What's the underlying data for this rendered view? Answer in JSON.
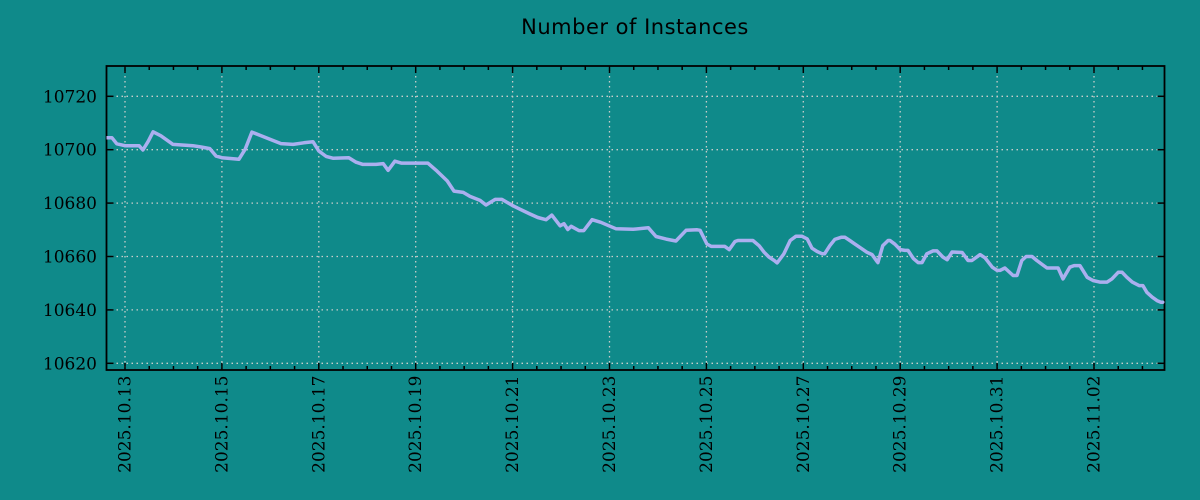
{
  "window": {
    "title": "Number of Instances"
  },
  "colors": {
    "background": "#0f8a8a",
    "series_line": "#abafef",
    "grid": "#c9cdcb",
    "axis_border": "#000000",
    "text": "#000000"
  },
  "chart_data": {
    "type": "line",
    "title": "Number of Instances",
    "xlabel": "",
    "ylabel": "",
    "legend": "none",
    "grid": true,
    "grid_style": "dotted",
    "x_tick_labels": [
      "2025.10.13",
      "2025.10.15",
      "2025.10.17",
      "2025.10.19",
      "2025.10.21",
      "2025.10.23",
      "2025.10.25",
      "2025.10.27",
      "2025.10.29",
      "2025.10.31",
      "2025.11.02"
    ],
    "x_tick_days": [
      0,
      2,
      4,
      6,
      8,
      10,
      12,
      14,
      16,
      18,
      20
    ],
    "x_minor_step_days": 0.5,
    "xlim_days": [
      -0.38,
      21.45
    ],
    "y_ticks": [
      10620,
      10640,
      10660,
      10680,
      10700,
      10720
    ],
    "ylim": [
      10617,
      10731
    ],
    "series": [
      {
        "name": "instances",
        "points": [
          [
            -0.38,
            10704.5
          ],
          [
            -0.27,
            10704.5
          ],
          [
            -0.17,
            10702.2
          ],
          [
            0.0,
            10701.5
          ],
          [
            0.29,
            10701.5
          ],
          [
            0.37,
            10699.9
          ],
          [
            0.48,
            10703.2
          ],
          [
            0.58,
            10706.7
          ],
          [
            0.74,
            10705.2
          ],
          [
            0.99,
            10702.0
          ],
          [
            1.4,
            10701.5
          ],
          [
            1.57,
            10701.0
          ],
          [
            1.75,
            10700.4
          ],
          [
            1.88,
            10697.6
          ],
          [
            2.0,
            10697.0
          ],
          [
            2.35,
            10696.4
          ],
          [
            2.48,
            10700.2
          ],
          [
            2.62,
            10706.6
          ],
          [
            2.81,
            10705.2
          ],
          [
            2.99,
            10703.9
          ],
          [
            3.22,
            10702.3
          ],
          [
            3.47,
            10702.0
          ],
          [
            3.69,
            10702.6
          ],
          [
            3.88,
            10703.0
          ],
          [
            4.0,
            10699.5
          ],
          [
            4.15,
            10697.5
          ],
          [
            4.29,
            10696.8
          ],
          [
            4.62,
            10697.0
          ],
          [
            4.77,
            10695.3
          ],
          [
            4.91,
            10694.5
          ],
          [
            5.18,
            10694.5
          ],
          [
            5.33,
            10694.8
          ],
          [
            5.43,
            10692.3
          ],
          [
            5.57,
            10695.7
          ],
          [
            5.7,
            10695.0
          ],
          [
            6.25,
            10695.0
          ],
          [
            6.44,
            10692.0
          ],
          [
            6.65,
            10688.3
          ],
          [
            6.79,
            10684.5
          ],
          [
            6.98,
            10684.0
          ],
          [
            7.12,
            10682.5
          ],
          [
            7.33,
            10681.0
          ],
          [
            7.45,
            10679.3
          ],
          [
            7.64,
            10681.4
          ],
          [
            7.78,
            10681.4
          ],
          [
            8.01,
            10679.0
          ],
          [
            8.15,
            10677.7
          ],
          [
            8.36,
            10675.9
          ],
          [
            8.52,
            10674.6
          ],
          [
            8.69,
            10673.8
          ],
          [
            8.81,
            10675.5
          ],
          [
            8.98,
            10671.5
          ],
          [
            9.06,
            10672.3
          ],
          [
            9.14,
            10670.1
          ],
          [
            9.21,
            10671.3
          ],
          [
            9.37,
            10669.7
          ],
          [
            9.47,
            10669.7
          ],
          [
            9.64,
            10673.8
          ],
          [
            9.82,
            10672.8
          ],
          [
            9.99,
            10671.5
          ],
          [
            10.13,
            10670.4
          ],
          [
            10.49,
            10670.2
          ],
          [
            10.8,
            10670.8
          ],
          [
            10.96,
            10667.5
          ],
          [
            11.17,
            10666.5
          ],
          [
            11.37,
            10665.8
          ],
          [
            11.58,
            10669.8
          ],
          [
            11.81,
            10670.0
          ],
          [
            11.87,
            10669.8
          ],
          [
            12.01,
            10664.7
          ],
          [
            12.1,
            10663.8
          ],
          [
            12.38,
            10663.8
          ],
          [
            12.47,
            10662.6
          ],
          [
            12.59,
            10665.6
          ],
          [
            12.65,
            10666.0
          ],
          [
            12.96,
            10666.0
          ],
          [
            13.09,
            10664.0
          ],
          [
            13.19,
            10661.6
          ],
          [
            13.29,
            10659.8
          ],
          [
            13.4,
            10658.5
          ],
          [
            13.46,
            10657.6
          ],
          [
            13.6,
            10661.0
          ],
          [
            13.73,
            10666.0
          ],
          [
            13.85,
            10667.6
          ],
          [
            13.97,
            10667.6
          ],
          [
            14.08,
            10666.6
          ],
          [
            14.18,
            10663.1
          ],
          [
            14.28,
            10661.9
          ],
          [
            14.39,
            10661.0
          ],
          [
            14.44,
            10661.0
          ],
          [
            14.55,
            10664.1
          ],
          [
            14.65,
            10666.4
          ],
          [
            14.78,
            10667.2
          ],
          [
            14.86,
            10667.2
          ],
          [
            14.96,
            10666.0
          ],
          [
            15.07,
            10664.6
          ],
          [
            15.21,
            10662.9
          ],
          [
            15.31,
            10661.6
          ],
          [
            15.42,
            10660.7
          ],
          [
            15.52,
            10658.2
          ],
          [
            15.54,
            10657.7
          ],
          [
            15.64,
            10664.1
          ],
          [
            15.75,
            10666.0
          ],
          [
            15.79,
            10666.0
          ],
          [
            15.89,
            10664.6
          ],
          [
            16.0,
            10662.6
          ],
          [
            16.1,
            10662.3
          ],
          [
            16.16,
            10662.3
          ],
          [
            16.27,
            10659.3
          ],
          [
            16.37,
            10657.7
          ],
          [
            16.45,
            10657.7
          ],
          [
            16.55,
            10661.0
          ],
          [
            16.68,
            10662.1
          ],
          [
            16.76,
            10662.1
          ],
          [
            16.88,
            10659.8
          ],
          [
            16.97,
            10658.8
          ],
          [
            17.07,
            10661.7
          ],
          [
            17.28,
            10661.5
          ],
          [
            17.4,
            10658.5
          ],
          [
            17.48,
            10658.5
          ],
          [
            17.65,
            10660.7
          ],
          [
            17.75,
            10659.5
          ],
          [
            17.9,
            10656.0
          ],
          [
            18.0,
            10654.8
          ],
          [
            18.06,
            10654.8
          ],
          [
            18.16,
            10655.7
          ],
          [
            18.33,
            10652.9
          ],
          [
            18.41,
            10652.9
          ],
          [
            18.51,
            10658.5
          ],
          [
            18.6,
            10660.0
          ],
          [
            18.72,
            10660.0
          ],
          [
            18.82,
            10658.5
          ],
          [
            18.93,
            10657.0
          ],
          [
            19.03,
            10655.7
          ],
          [
            19.26,
            10655.7
          ],
          [
            19.36,
            10651.6
          ],
          [
            19.5,
            10656.0
          ],
          [
            19.59,
            10656.6
          ],
          [
            19.71,
            10656.6
          ],
          [
            19.86,
            10652.2
          ],
          [
            19.98,
            10651.0
          ],
          [
            20.12,
            10650.4
          ],
          [
            20.27,
            10650.4
          ],
          [
            20.37,
            10651.6
          ],
          [
            20.5,
            10654.1
          ],
          [
            20.58,
            10654.1
          ],
          [
            20.68,
            10652.2
          ],
          [
            20.79,
            10650.4
          ],
          [
            20.93,
            10649.1
          ],
          [
            21.01,
            10649.1
          ],
          [
            21.09,
            10646.6
          ],
          [
            21.2,
            10644.8
          ],
          [
            21.3,
            10643.5
          ],
          [
            21.38,
            10642.9
          ],
          [
            21.42,
            10642.9
          ]
        ]
      }
    ]
  }
}
